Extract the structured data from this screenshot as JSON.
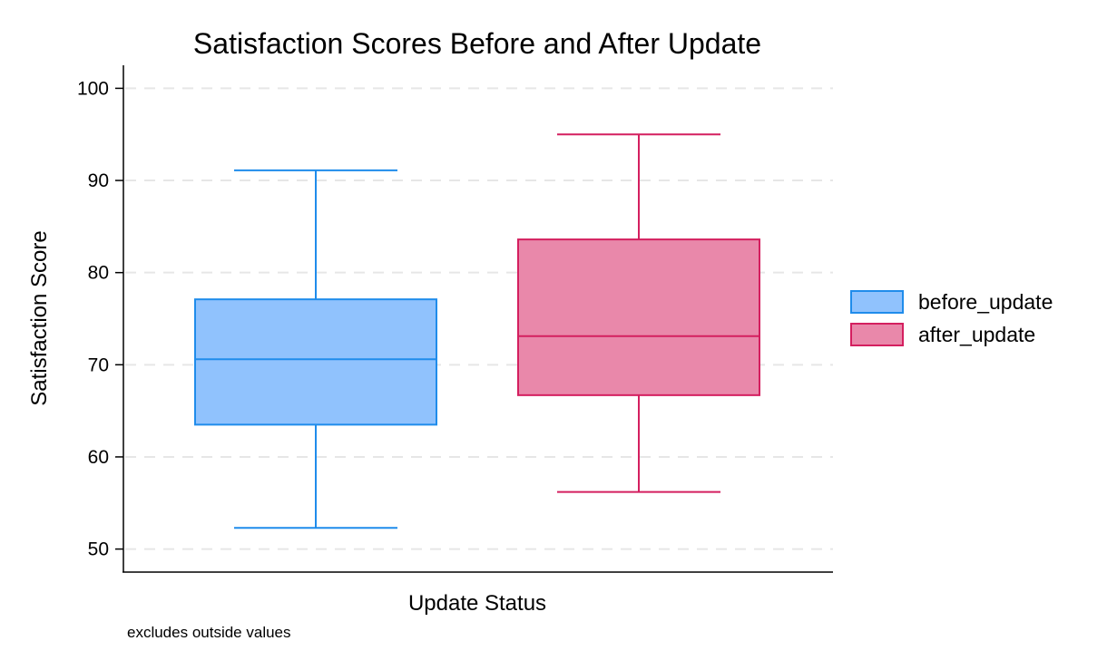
{
  "chart_data": {
    "type": "box",
    "title": "Satisfaction Scores Before and After Update",
    "xlabel": "Update Status",
    "ylabel": "Satisfaction Score",
    "note": "excludes outside values",
    "ylim": [
      47.5,
      102.5
    ],
    "yticks": [
      50,
      60,
      70,
      80,
      90,
      100
    ],
    "grid": "horizontal dashed",
    "legend_position": "right",
    "series": [
      {
        "name": "before_update",
        "whisker_low": 52.3,
        "q1": 63.5,
        "median": 70.6,
        "q3": 77.1,
        "whisker_high": 91.1,
        "fill": "#90c2fd",
        "stroke": "#1f8ceb"
      },
      {
        "name": "after_update",
        "whisker_low": 56.2,
        "q1": 66.7,
        "median": 73.1,
        "q3": 83.6,
        "whisker_high": 95.0,
        "fill": "#e988aa",
        "stroke": "#d41f5f"
      }
    ]
  }
}
